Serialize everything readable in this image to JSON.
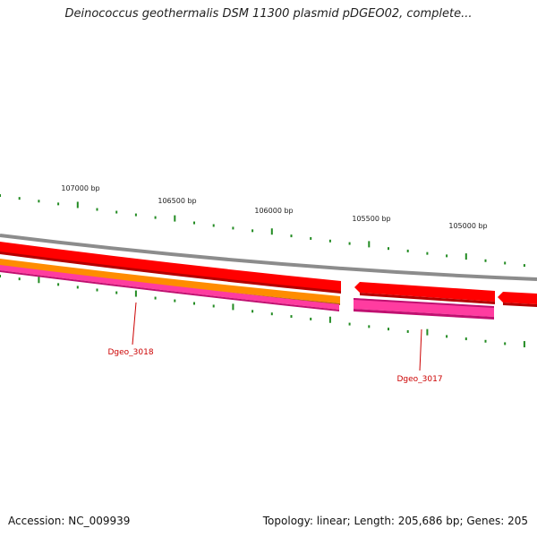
{
  "title": "Deinococcus geothermalis DSM 11300 plasmid pDGEO02, complete...",
  "footer": {
    "accession": "Accession: NC_009939",
    "summary": "Topology: linear; Length: 205,686 bp; Genes: 205"
  },
  "colors": {
    "backbone": "#8c8c8c",
    "cds_forward": "#ff0000",
    "cds_dark": "#b40000",
    "gene_orange": "#ff8c00",
    "gene_pink": "#ff3ca0",
    "gene_magenta": "#c01070",
    "tick": "#228b22",
    "label_red": "#cc0000"
  },
  "ticks": [
    {
      "label": "107000 bp"
    },
    {
      "label": "106500 bp"
    },
    {
      "label": "106000 bp"
    },
    {
      "label": "105500 bp"
    },
    {
      "label": "105000 bp"
    }
  ],
  "genes": [
    {
      "label": "Dgeo_3018"
    },
    {
      "label": "Dgeo_3017"
    }
  ]
}
